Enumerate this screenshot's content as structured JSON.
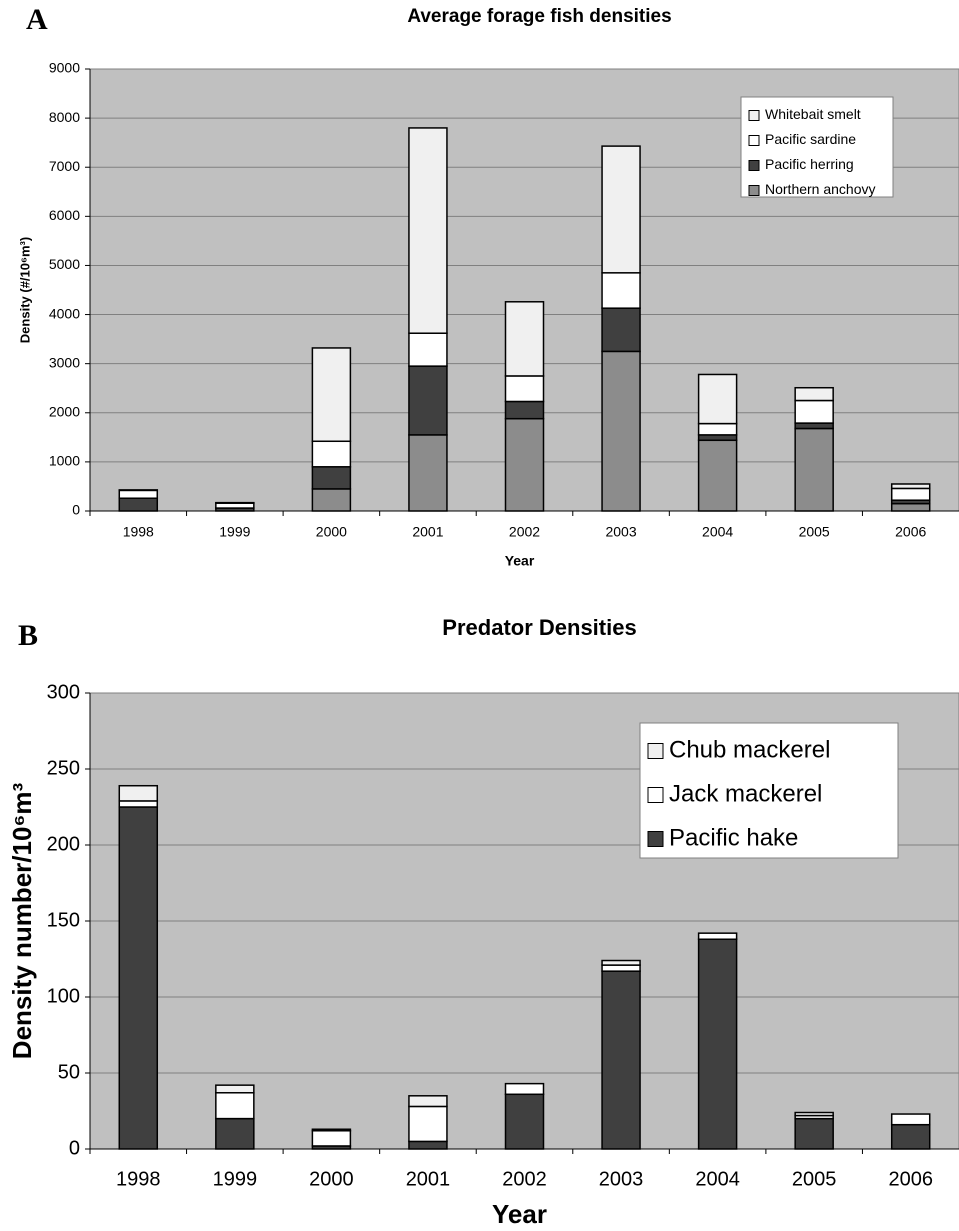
{
  "chart_data": [
    {
      "type": "stacked-bar",
      "panel": "A",
      "title": "Average forage fish densities",
      "x_label": "Year",
      "y_label": "Density (#/10⁶m³)",
      "categories": [
        "1998",
        "1999",
        "2000",
        "2001",
        "2002",
        "2003",
        "2004",
        "2005",
        "2006"
      ],
      "series": [
        {
          "name": "Northern anchovy",
          "color": "#8c8c8c",
          "values": [
            0,
            0,
            450,
            1550,
            1880,
            3250,
            1440,
            1680,
            150
          ]
        },
        {
          "name": "Pacific herring",
          "color": "#404040",
          "values": [
            260,
            60,
            450,
            1400,
            350,
            880,
            110,
            110,
            70
          ]
        },
        {
          "name": "Pacific sardine",
          "color": "#ffffff",
          "values": [
            160,
            100,
            520,
            670,
            520,
            720,
            230,
            460,
            240
          ]
        },
        {
          "name": "Whitebait smelt",
          "color": "#f0f0f0",
          "values": [
            10,
            10,
            1900,
            4180,
            1510,
            2580,
            1000,
            260,
            90
          ]
        }
      ],
      "ylim": [
        0,
        9000
      ],
      "yticks": [
        0,
        1000,
        2000,
        3000,
        4000,
        5000,
        6000,
        7000,
        8000,
        9000
      ],
      "grid": true,
      "legend": "top-right"
    },
    {
      "type": "stacked-bar",
      "panel": "B",
      "title": "Predator Densities",
      "x_label": "Year",
      "y_label": "Density number/10⁶m³",
      "categories": [
        "1998",
        "1999",
        "2000",
        "2001",
        "2002",
        "2003",
        "2004",
        "2005",
        "2006"
      ],
      "series": [
        {
          "name": "Pacific hake",
          "color": "#404040",
          "values": [
            225,
            20,
            2,
            5,
            36,
            117,
            138,
            20,
            16
          ]
        },
        {
          "name": "Jack mackerel",
          "color": "#ffffff",
          "values": [
            4,
            17,
            10,
            23,
            7,
            4,
            4,
            2,
            7
          ]
        },
        {
          "name": "Chub mackerel",
          "color": "#f0f0f0",
          "values": [
            10,
            5,
            1,
            7,
            0,
            3,
            0,
            2,
            0
          ]
        }
      ],
      "ylim": [
        0,
        300
      ],
      "yticks": [
        0,
        50,
        100,
        150,
        200,
        250,
        300
      ],
      "grid": true,
      "legend": "top-right"
    }
  ]
}
